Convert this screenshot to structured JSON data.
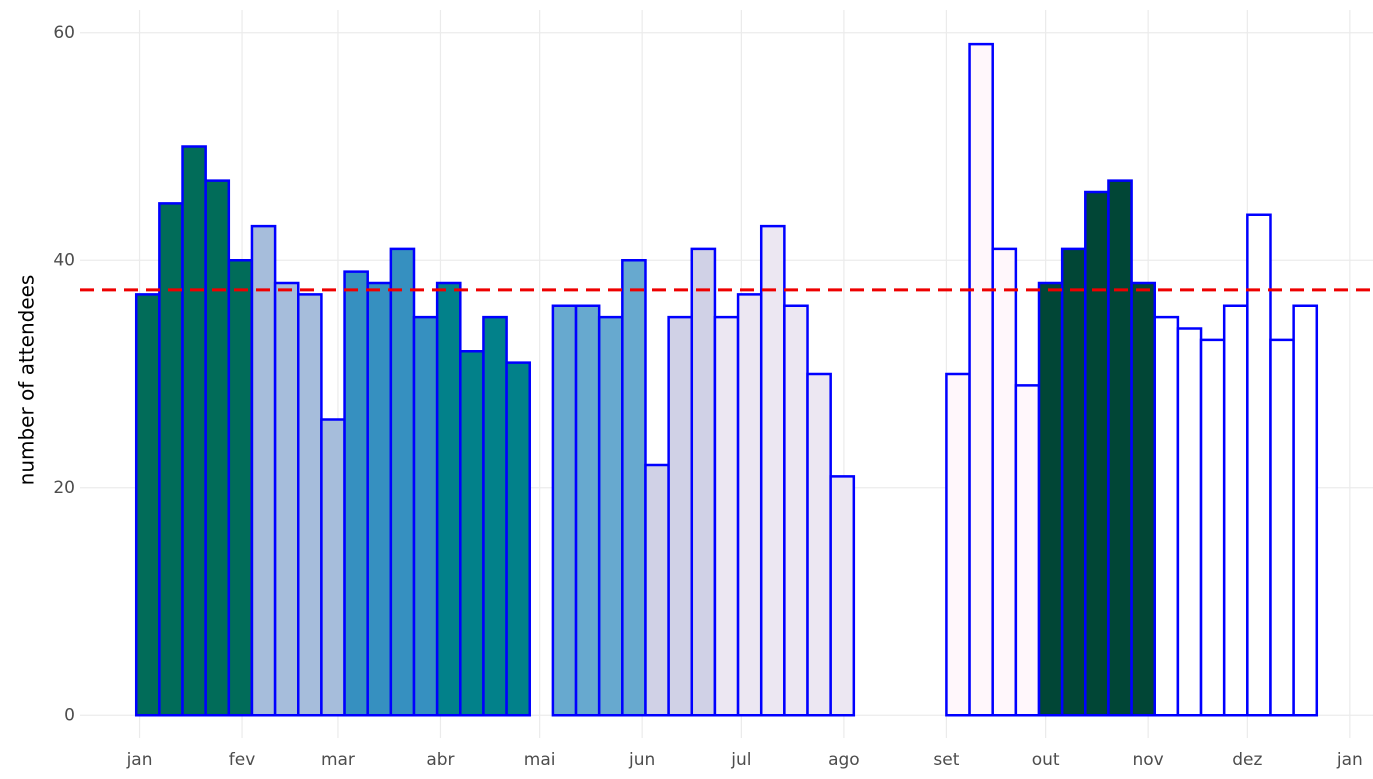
{
  "chart_data": {
    "type": "bar",
    "y_label": "number of attendees",
    "x": [
      2.5,
      9.5,
      16.5,
      23.5,
      30.5,
      37.5,
      44.5,
      51.5,
      58.5,
      65.5,
      72.5,
      79.5,
      86.5,
      93.5,
      100.5,
      107.5,
      114.5,
      128.5,
      135.5,
      142.5,
      149.5,
      156.5,
      163.5,
      170.5,
      177.5,
      184.5,
      191.5,
      198.5,
      205.5,
      212.5,
      247.5,
      254.5,
      261.5,
      268.5,
      275.5,
      282.5,
      289.5,
      296.5,
      303.5,
      310.5,
      317.5,
      324.5,
      331.5,
      338.5,
      345.5,
      352.5
    ],
    "values": [
      37,
      45,
      50,
      47,
      40,
      43,
      38,
      37,
      26,
      39,
      38,
      41,
      35,
      38,
      32,
      35,
      31,
      36,
      36,
      35,
      40,
      22,
      35,
      41,
      35,
      37,
      43,
      36,
      30,
      21,
      30,
      59,
      41,
      29,
      38,
      41,
      46,
      47,
      38,
      35,
      34,
      33,
      36,
      44,
      33,
      36
    ],
    "colors": [
      "#016c59",
      "#016c59",
      "#016c59",
      "#016c59",
      "#016c59",
      "#a6bddb",
      "#a6bddb",
      "#a6bddb",
      "#a6bddb",
      "#3690c0",
      "#3690c0",
      "#3690c0",
      "#3690c0",
      "#02818a",
      "#02818a",
      "#02818a",
      "#02818a",
      "#67a9cf",
      "#67a9cf",
      "#67a9cf",
      "#67a9cf",
      "#d0d1e6",
      "#d0d1e6",
      "#d0d1e6",
      "#ece7f2",
      "#ece7f2",
      "#ece7f2",
      "#ece7f2",
      "#ece7f2",
      "#ece7f2",
      "#fff7fb",
      "#fff7fb",
      "#fff7fb",
      "#fff7fb",
      "#014636",
      "#014636",
      "#014636",
      "#014636",
      "#014636",
      "#ffffff",
      "#ffffff",
      "#ffffff",
      "#ffffff",
      "#ffffff",
      "#ffffff",
      "#ffffff"
    ],
    "outline_color": "#0000ff",
    "bar_width": 7,
    "hline": {
      "value": 37.4,
      "color": "#ee0000"
    },
    "xlim": [
      -18,
      373
    ],
    "xticks": [
      {
        "value": 0,
        "label": "jan"
      },
      {
        "value": 31,
        "label": "fev"
      },
      {
        "value": 60,
        "label": "mar"
      },
      {
        "value": 91,
        "label": "abr"
      },
      {
        "value": 121,
        "label": "mai"
      },
      {
        "value": 152,
        "label": "jun"
      },
      {
        "value": 182,
        "label": "jul"
      },
      {
        "value": 213,
        "label": "ago"
      },
      {
        "value": 244,
        "label": "set"
      },
      {
        "value": 274,
        "label": "out"
      },
      {
        "value": 305,
        "label": "nov"
      },
      {
        "value": 335,
        "label": "dez"
      },
      {
        "value": 366,
        "label": "jan"
      }
    ],
    "ylim": [
      -2,
      62
    ],
    "yticks": [
      0,
      20,
      40,
      60
    ],
    "grid": true
  }
}
